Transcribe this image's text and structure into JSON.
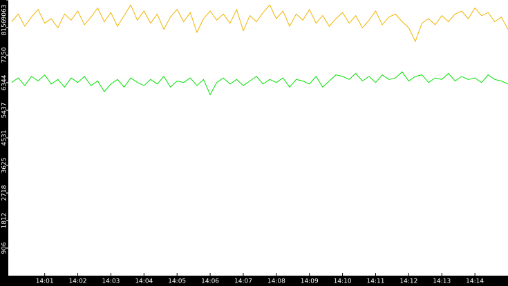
{
  "chart_data": {
    "type": "line",
    "x": [
      0.0,
      0.2,
      0.4,
      0.6,
      0.8,
      1.0,
      1.2,
      1.4,
      1.6,
      1.8,
      2.0,
      2.2,
      2.4,
      2.6,
      2.8,
      3.0,
      3.2,
      3.4,
      3.6,
      3.8,
      4.0,
      4.2,
      4.4,
      4.6,
      4.8,
      5.0,
      5.2,
      5.4,
      5.6,
      5.8,
      6.0,
      6.2,
      6.4,
      6.6,
      6.8,
      7.0,
      7.2,
      7.4,
      7.6,
      7.8,
      8.0,
      8.2,
      8.4,
      8.6,
      8.8,
      9.0,
      9.2,
      9.4,
      9.6,
      9.8,
      10.0,
      10.2,
      10.4,
      10.6,
      10.8,
      11.0,
      11.2,
      11.4,
      11.6,
      11.8,
      12.0,
      12.2,
      12.4,
      12.6,
      12.8,
      13.0,
      13.2,
      13.4,
      13.6,
      13.8,
      14.0,
      14.2,
      14.4,
      14.6,
      14.8,
      15.0
    ],
    "series": [
      {
        "color": "#f0b400",
        "values": [
          8350,
          8600,
          8200,
          8500,
          8750,
          8300,
          8450,
          8150,
          8600,
          8400,
          8700,
          8250,
          8500,
          8800,
          8350,
          8650,
          8200,
          8550,
          8900,
          8400,
          8700,
          8300,
          8600,
          8100,
          8500,
          8750,
          8350,
          8650,
          8000,
          8450,
          8700,
          8400,
          8600,
          8300,
          8750,
          8050,
          8550,
          8350,
          8650,
          8900,
          8450,
          8700,
          8200,
          8600,
          8400,
          8750,
          8300,
          8550,
          8200,
          8450,
          8650,
          8300,
          8550,
          8150,
          8400,
          8700,
          8250,
          8500,
          8600,
          8350,
          8150,
          7700,
          8300,
          8450,
          8250,
          8550,
          8350,
          8600,
          8700,
          8450,
          8800,
          8550,
          8650,
          8350,
          8500,
          8100
        ]
      },
      {
        "color": "#00e000",
        "values": [
          6350,
          6500,
          6250,
          6550,
          6400,
          6600,
          6300,
          6450,
          6200,
          6500,
          6350,
          6550,
          6250,
          6400,
          6050,
          6300,
          6450,
          6200,
          6500,
          6350,
          6250,
          6450,
          6300,
          6550,
          6200,
          6400,
          6350,
          6500,
          6250,
          6450,
          5950,
          6350,
          6500,
          6300,
          6450,
          6250,
          6400,
          6550,
          6300,
          6450,
          6350,
          6500,
          6200,
          6450,
          6400,
          6300,
          6550,
          6200,
          6400,
          6600,
          6550,
          6450,
          6650,
          6400,
          6550,
          6350,
          6600,
          6450,
          6500,
          6700,
          6400,
          6550,
          6600,
          6350,
          6500,
          6450,
          6650,
          6400,
          6550,
          6450,
          6500,
          6350,
          6600,
          6450,
          6400,
          6300
        ]
      }
    ],
    "xlim": [
      -0.1,
      15.0
    ],
    "xticks": [
      {
        "value": 1,
        "label": "14:01"
      },
      {
        "value": 2,
        "label": "14:02"
      },
      {
        "value": 3,
        "label": "14:03"
      },
      {
        "value": 4,
        "label": "14:04"
      },
      {
        "value": 5,
        "label": "14:05"
      },
      {
        "value": 6,
        "label": "14:06"
      },
      {
        "value": 7,
        "label": "14:07"
      },
      {
        "value": 8,
        "label": "14:08"
      },
      {
        "value": 9,
        "label": "14:09"
      },
      {
        "value": 10,
        "label": "14:10"
      },
      {
        "value": 11,
        "label": "14:11"
      },
      {
        "value": 12,
        "label": "14:12"
      },
      {
        "value": 13,
        "label": "14:13"
      },
      {
        "value": 14,
        "label": "14:14"
      }
    ],
    "ylim": [
      0,
      9063
    ],
    "yticks": [
      906,
      1812,
      2718,
      3625,
      4531,
      5437,
      6344,
      7250,
      8156,
      9063
    ]
  }
}
